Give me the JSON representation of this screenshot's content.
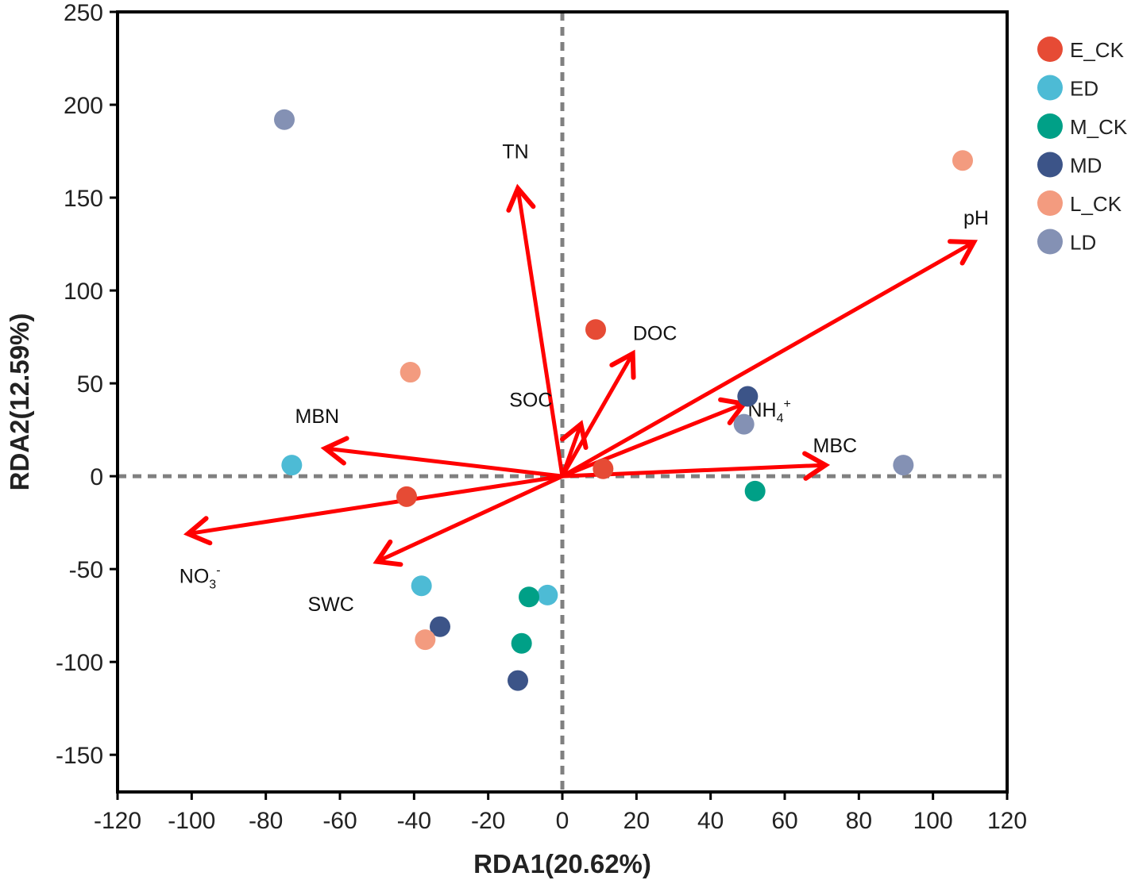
{
  "chart_data": {
    "type": "scatter",
    "subtype": "rda-biplot",
    "xlabel": "RDA1(20.62%)",
    "ylabel": "RDA2(12.59%)",
    "xlim": [
      -120,
      120
    ],
    "ylim": [
      -170,
      250
    ],
    "xticks": [
      -120,
      -100,
      -80,
      -60,
      -40,
      -20,
      0,
      20,
      40,
      60,
      80,
      100,
      120
    ],
    "yticks": [
      -150,
      -100,
      -50,
      0,
      50,
      100,
      150,
      200,
      250
    ],
    "reference_lines": {
      "x": 0,
      "y": 0,
      "style": "dashed"
    },
    "legend_position": "right",
    "series": [
      {
        "name": "E_CK",
        "color": "#E64B35",
        "points": [
          [
            9,
            79
          ],
          [
            11,
            4
          ],
          [
            -42,
            -11
          ]
        ]
      },
      {
        "name": "ED",
        "color": "#4DBBD5",
        "points": [
          [
            -73,
            6
          ],
          [
            -38,
            -59
          ],
          [
            -4,
            -64
          ]
        ]
      },
      {
        "name": "M_CK",
        "color": "#00A087",
        "points": [
          [
            -9,
            -65
          ],
          [
            -11,
            -90
          ],
          [
            52,
            -8
          ]
        ]
      },
      {
        "name": "MD",
        "color": "#3C5488",
        "points": [
          [
            -33,
            -81
          ],
          [
            -12,
            -110
          ],
          [
            50,
            43
          ]
        ]
      },
      {
        "name": "L_CK",
        "color": "#F39B7F",
        "points": [
          [
            -41,
            56
          ],
          [
            -37,
            -88
          ],
          [
            108,
            170
          ]
        ]
      },
      {
        "name": "LD",
        "color": "#8491B4",
        "points": [
          [
            -75,
            192
          ],
          [
            49,
            28
          ],
          [
            92,
            6
          ]
        ]
      }
    ],
    "vectors": [
      {
        "name": "TN",
        "label": "TN",
        "sub": "",
        "sup": "",
        "end": [
          -12,
          155
        ]
      },
      {
        "name": "pH",
        "label": "pH",
        "sub": "",
        "sup": "",
        "end": [
          111,
          126
        ]
      },
      {
        "name": "DOC",
        "label": "DOC",
        "sub": "",
        "sup": "",
        "end": [
          19,
          66
        ]
      },
      {
        "name": "SOC",
        "label": "SOC",
        "sub": "",
        "sup": "",
        "end": [
          5,
          28
        ]
      },
      {
        "name": "NH4",
        "label": "NH",
        "sub": "4",
        "sup": "+",
        "end": [
          49,
          39
        ]
      },
      {
        "name": "MBC",
        "label": "MBC",
        "sub": "",
        "sup": "",
        "end": [
          71,
          6
        ]
      },
      {
        "name": "MBN",
        "label": "MBN",
        "sub": "",
        "sup": "",
        "end": [
          -64,
          15
        ]
      },
      {
        "name": "NO3",
        "label": "NO",
        "sub": "3",
        "sup": "-",
        "end": [
          -101,
          -31
        ]
      },
      {
        "name": "SWC",
        "label": "SWC",
        "sub": "",
        "sup": "",
        "end": [
          -50,
          -46
        ]
      }
    ],
    "vector_color": "#FF0000"
  }
}
